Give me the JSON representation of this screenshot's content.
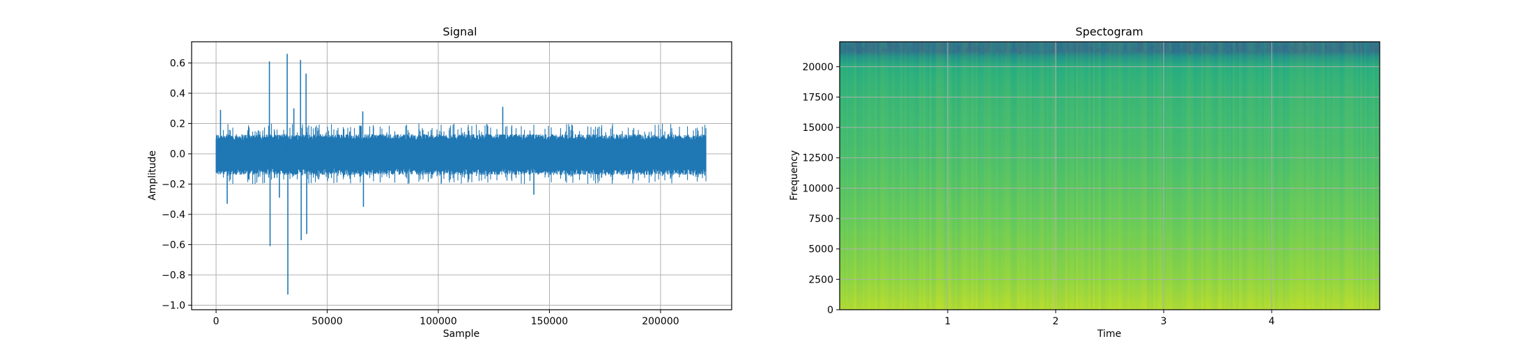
{
  "figure": {
    "background": "#ffffff"
  },
  "chart_data": [
    {
      "type": "line",
      "title": "Signal",
      "xlabel": "Sample",
      "ylabel": "Amplitude",
      "xlim": [
        -11000,
        232000
      ],
      "ylim": [
        -1.03,
        0.74
      ],
      "xticks": [
        0,
        50000,
        100000,
        150000,
        200000
      ],
      "xtick_labels": [
        "0",
        "50000",
        "100000",
        "150000",
        "200000"
      ],
      "yticks": [
        -1.0,
        -0.8,
        -0.6,
        -0.4,
        -0.2,
        0.0,
        0.2,
        0.4,
        0.6
      ],
      "ytick_labels": [
        "−1.0",
        "−0.8",
        "−0.6",
        "−0.4",
        "−0.2",
        "0.0",
        "0.2",
        "0.4",
        "0.6"
      ],
      "grid": true,
      "color": "#1f77b4",
      "series": [
        {
          "n_samples": 220500,
          "envelope": {
            "typical_max": 0.13,
            "typical_min": -0.14,
            "burst_max": 0.2,
            "burst_min": -0.2
          },
          "peaks": [
            {
              "x": 24000,
              "y": 0.61
            },
            {
              "x": 24300,
              "y": -0.61
            },
            {
              "x": 32000,
              "y": 0.66
            },
            {
              "x": 32300,
              "y": -0.93
            },
            {
              "x": 38000,
              "y": 0.62
            },
            {
              "x": 38300,
              "y": -0.57
            },
            {
              "x": 40500,
              "y": 0.53
            },
            {
              "x": 40800,
              "y": -0.53
            },
            {
              "x": 2000,
              "y": 0.29
            },
            {
              "x": 5000,
              "y": -0.33
            },
            {
              "x": 28500,
              "y": -0.29
            },
            {
              "x": 35000,
              "y": 0.3
            },
            {
              "x": 66000,
              "y": 0.28
            },
            {
              "x": 66300,
              "y": -0.35
            },
            {
              "x": 129000,
              "y": 0.31
            },
            {
              "x": 143000,
              "y": -0.27
            }
          ]
        }
      ]
    },
    {
      "type": "heatmap",
      "title": "Spectogram",
      "xlabel": "Time",
      "ylabel": "Frequency",
      "xlim": [
        0,
        5.0
      ],
      "ylim": [
        0,
        22050
      ],
      "xticks": [
        1,
        2,
        3,
        4
      ],
      "xtick_labels": [
        "1",
        "2",
        "3",
        "4"
      ],
      "yticks": [
        0,
        2500,
        5000,
        7500,
        10000,
        12500,
        15000,
        17500,
        20000
      ],
      "ytick_labels": [
        "0",
        "2500",
        "5000",
        "7500",
        "10000",
        "12500",
        "15000",
        "17500",
        "20000"
      ],
      "grid": true,
      "colormap": "viridis",
      "intensity_profile": [
        {
          "freq": 0,
          "level": 0.9
        },
        {
          "freq": 2500,
          "level": 0.84
        },
        {
          "freq": 7500,
          "level": 0.77
        },
        {
          "freq": 12500,
          "level": 0.71
        },
        {
          "freq": 17500,
          "level": 0.66
        },
        {
          "freq": 20000,
          "level": 0.62
        },
        {
          "freq": 20800,
          "level": 0.5
        },
        {
          "freq": 21300,
          "level": 0.35
        },
        {
          "freq": 22050,
          "level": 0.32
        }
      ]
    }
  ]
}
